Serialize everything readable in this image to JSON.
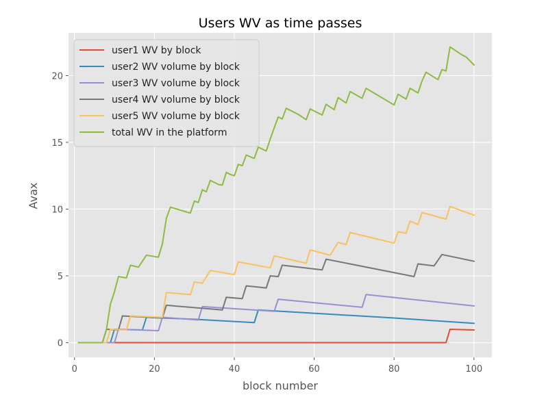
{
  "chart_data": {
    "type": "line",
    "title": "Users WV as time passes",
    "xlabel": "block number",
    "ylabel": "Avax",
    "xlim": [
      -1.5,
      104.5
    ],
    "ylim": [
      -1.1,
      23.2
    ],
    "xticks": [
      0,
      20,
      40,
      60,
      80,
      100
    ],
    "yticks": [
      0,
      5,
      10,
      15,
      20
    ],
    "grid": true,
    "style": "ggplot",
    "legend_position": "top-left",
    "series": [
      {
        "name": "user1 WV by block",
        "color": "#E24A33",
        "points": [
          [
            1,
            0
          ],
          [
            93,
            0
          ],
          [
            94,
            1.0
          ],
          [
            100,
            0.95
          ]
        ]
      },
      {
        "name": "user2 WV volume by block",
        "color": "#348ABD",
        "points": [
          [
            1,
            0
          ],
          [
            9,
            0
          ],
          [
            10,
            1.0
          ],
          [
            17,
            0.95
          ],
          [
            18,
            1.9
          ],
          [
            30,
            1.75
          ],
          [
            45,
            1.5
          ],
          [
            46,
            2.45
          ],
          [
            60,
            2.2
          ],
          [
            80,
            1.85
          ],
          [
            100,
            1.45
          ]
        ]
      },
      {
        "name": "user3 WV volume by block",
        "color": "#988ED5",
        "points": [
          [
            1,
            0
          ],
          [
            10,
            0
          ],
          [
            11,
            1.0
          ],
          [
            21,
            0.9
          ],
          [
            22,
            1.9
          ],
          [
            31,
            1.7
          ],
          [
            32,
            2.7
          ],
          [
            50,
            2.35
          ],
          [
            51,
            3.25
          ],
          [
            72,
            2.65
          ],
          [
            73,
            3.6
          ],
          [
            100,
            2.75
          ]
        ]
      },
      {
        "name": "user4 WV volume by block",
        "color": "#777777",
        "points": [
          [
            1,
            0
          ],
          [
            7,
            0
          ],
          [
            8,
            1.0
          ],
          [
            11,
            0.95
          ],
          [
            12,
            2.0
          ],
          [
            22,
            1.85
          ],
          [
            23,
            2.8
          ],
          [
            37,
            2.45
          ],
          [
            38,
            3.4
          ],
          [
            42,
            3.3
          ],
          [
            43,
            4.25
          ],
          [
            48,
            4.1
          ],
          [
            49,
            5.0
          ],
          [
            51,
            4.95
          ],
          [
            52,
            5.8
          ],
          [
            62,
            5.45
          ],
          [
            63,
            6.25
          ],
          [
            85,
            4.95
          ],
          [
            86,
            5.9
          ],
          [
            90,
            5.75
          ],
          [
            92,
            6.6
          ],
          [
            100,
            6.1
          ]
        ]
      },
      {
        "name": "user5 WV volume by block",
        "color": "#FBC15E",
        "points": [
          [
            1,
            0
          ],
          [
            8,
            0
          ],
          [
            9,
            1.0
          ],
          [
            13,
            0.95
          ],
          [
            14,
            2.0
          ],
          [
            22,
            1.9
          ],
          [
            23,
            3.75
          ],
          [
            29,
            3.6
          ],
          [
            30,
            4.55
          ],
          [
            32,
            4.45
          ],
          [
            34,
            5.4
          ],
          [
            40,
            5.1
          ],
          [
            41,
            6.05
          ],
          [
            49,
            5.6
          ],
          [
            50,
            6.5
          ],
          [
            58,
            5.95
          ],
          [
            59,
            6.95
          ],
          [
            64,
            6.55
          ],
          [
            66,
            7.5
          ],
          [
            68,
            7.35
          ],
          [
            69,
            8.25
          ],
          [
            80,
            7.45
          ],
          [
            81,
            8.3
          ],
          [
            83,
            8.2
          ],
          [
            84,
            9.1
          ],
          [
            86,
            8.85
          ],
          [
            87,
            9.75
          ],
          [
            93,
            9.25
          ],
          [
            94,
            10.2
          ],
          [
            100,
            9.55
          ]
        ]
      },
      {
        "name": "total WV in the platform",
        "color": "#8EBA42",
        "points": [
          [
            1,
            0
          ],
          [
            7,
            0
          ],
          [
            8,
            1.0
          ],
          [
            9,
            2.9
          ],
          [
            10,
            3.8
          ],
          [
            11,
            4.95
          ],
          [
            12,
            4.9
          ],
          [
            13,
            4.85
          ],
          [
            14,
            5.8
          ],
          [
            16,
            5.65
          ],
          [
            18,
            6.55
          ],
          [
            20,
            6.45
          ],
          [
            21,
            6.4
          ],
          [
            22,
            7.4
          ],
          [
            23,
            9.3
          ],
          [
            24,
            10.15
          ],
          [
            29,
            9.7
          ],
          [
            30,
            10.6
          ],
          [
            31,
            10.5
          ],
          [
            32,
            11.45
          ],
          [
            33,
            11.3
          ],
          [
            34,
            12.15
          ],
          [
            36,
            11.85
          ],
          [
            37,
            11.8
          ],
          [
            38,
            12.75
          ],
          [
            39,
            12.6
          ],
          [
            40,
            12.5
          ],
          [
            41,
            13.35
          ],
          [
            42,
            13.25
          ],
          [
            43,
            14.05
          ],
          [
            45,
            13.8
          ],
          [
            46,
            14.65
          ],
          [
            48,
            14.35
          ],
          [
            49,
            15.25
          ],
          [
            50,
            16.1
          ],
          [
            51,
            16.9
          ],
          [
            52,
            16.75
          ],
          [
            53,
            17.55
          ],
          [
            56,
            17.1
          ],
          [
            58,
            16.7
          ],
          [
            59,
            17.5
          ],
          [
            62,
            17.05
          ],
          [
            63,
            17.85
          ],
          [
            65,
            17.45
          ],
          [
            66,
            18.35
          ],
          [
            68,
            17.95
          ],
          [
            69,
            18.8
          ],
          [
            72,
            18.3
          ],
          [
            73,
            19.05
          ],
          [
            80,
            17.8
          ],
          [
            81,
            18.6
          ],
          [
            83,
            18.25
          ],
          [
            84,
            19.05
          ],
          [
            86,
            18.7
          ],
          [
            87,
            19.6
          ],
          [
            88,
            20.25
          ],
          [
            91,
            19.7
          ],
          [
            92,
            20.45
          ],
          [
            93,
            20.35
          ],
          [
            94,
            22.15
          ],
          [
            97,
            21.55
          ],
          [
            98,
            21.4
          ],
          [
            100,
            20.8
          ]
        ]
      }
    ]
  }
}
